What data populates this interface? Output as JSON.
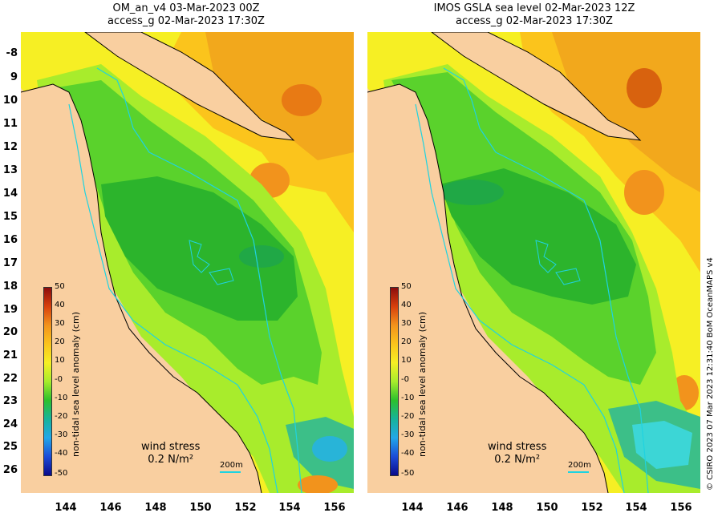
{
  "left": {
    "title_line1": "OM_an_v4  03-Mar-2023 00Z",
    "title_line2": "access_g 02-Mar-2023 17:30Z"
  },
  "right": {
    "title_line1": "IMOS GSLA sea level  02-Mar-2023 12Z",
    "title_line2": "access_g 02-Mar-2023 17:30Z"
  },
  "y_ticks": [
    "-8",
    "9",
    "10",
    "11",
    "12",
    "13",
    "14",
    "15",
    "16",
    "17",
    "18",
    "19",
    "20",
    "21",
    "22",
    "23",
    "24",
    "25",
    "26"
  ],
  "x_ticks": [
    "144",
    "146",
    "148",
    "150",
    "152",
    "154",
    "156"
  ],
  "colorbar": {
    "label": "non-tidal sea level anomaly (cm)",
    "ticks": [
      "50",
      "40",
      "30",
      "20",
      "10",
      "-0",
      "-10",
      "-20",
      "-30",
      "-40",
      "-50"
    ],
    "colors": [
      "#8b0d0d",
      "#d8400c",
      "#f2931c",
      "#fbc41c",
      "#f6ef24",
      "#a8ec2c",
      "#2cc02c",
      "#17b39a",
      "#22a7e8",
      "#1c4cd8",
      "#0a0a8a"
    ]
  },
  "wind": {
    "label": "wind stress",
    "value": "0.2 N/m²"
  },
  "depth_contour": "200m",
  "credit": "© CSIRO 2023   07 Mar 2023 12:31:40 BoM OceanMAPS v4"
}
